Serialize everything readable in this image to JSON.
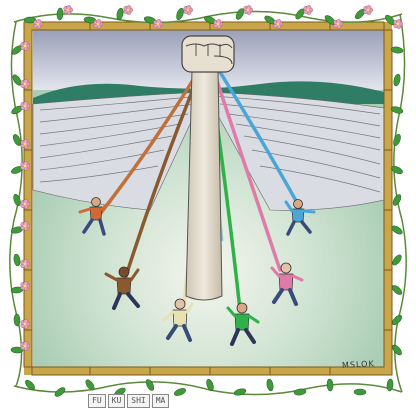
{
  "signature": "MSLOK",
  "caption": {
    "tiles": [
      "FU",
      "KU",
      "SHI",
      "MA"
    ]
  }
}
